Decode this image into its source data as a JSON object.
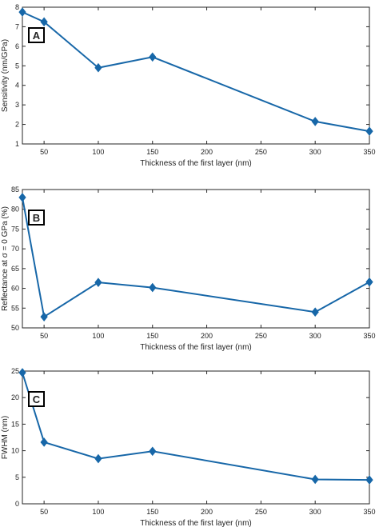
{
  "colors": {
    "series": "#1767a8",
    "axis": "#262626"
  },
  "chart_data": [
    {
      "type": "line",
      "panel_label": "A",
      "xlabel": "Thickness of the first layer (nm)",
      "ylabel": "Sensitivity (nm/GPa)",
      "xlim": [
        30,
        350
      ],
      "ylim": [
        1,
        8
      ],
      "xticks": [
        50,
        100,
        150,
        200,
        250,
        300,
        350
      ],
      "yticks": [
        1,
        2,
        3,
        4,
        5,
        6,
        7,
        8
      ],
      "xtick_labels": [
        "50",
        "100",
        "150",
        "200",
        "250",
        "300",
        "350"
      ],
      "ytick_labels": [
        "1",
        "2",
        "3",
        "4",
        "5",
        "6",
        "7",
        "8"
      ],
      "grid": false,
      "series": [
        {
          "x": [
            30,
            50,
            100,
            150,
            300,
            350
          ],
          "y": [
            7.75,
            7.25,
            4.9,
            5.45,
            2.15,
            1.65
          ]
        }
      ]
    },
    {
      "type": "line",
      "panel_label": "B",
      "xlabel": "Thickness of the first layer (nm)",
      "ylabel": "Reflectance at σ = 0 GPa (%)",
      "xlim": [
        30,
        350
      ],
      "ylim": [
        50,
        85
      ],
      "xticks": [
        50,
        100,
        150,
        200,
        250,
        300,
        350
      ],
      "yticks": [
        50,
        55,
        60,
        65,
        70,
        75,
        80,
        85
      ],
      "xtick_labels": [
        "50",
        "100",
        "150",
        "200",
        "250",
        "300",
        "350"
      ],
      "ytick_labels": [
        "50",
        "55",
        "60",
        "65",
        "70",
        "75",
        "80",
        "85"
      ],
      "grid": false,
      "series": [
        {
          "x": [
            30,
            50,
            100,
            150,
            300,
            350
          ],
          "y": [
            83,
            52.8,
            61.5,
            60.2,
            54,
            61.6
          ]
        }
      ]
    },
    {
      "type": "line",
      "panel_label": "C",
      "xlabel": "Thickness of the first layer (nm)",
      "ylabel": "FWHM (nm)",
      "xlim": [
        30,
        350
      ],
      "ylim": [
        0,
        25
      ],
      "xticks": [
        50,
        100,
        150,
        200,
        250,
        300,
        350
      ],
      "yticks": [
        0,
        5,
        10,
        15,
        20,
        25
      ],
      "xtick_labels": [
        "50",
        "100",
        "150",
        "200",
        "250",
        "300",
        "350"
      ],
      "ytick_labels": [
        "0",
        "5",
        "10",
        "15",
        "20",
        "25"
      ],
      "grid": false,
      "series": [
        {
          "x": [
            30,
            50,
            100,
            150,
            300,
            350
          ],
          "y": [
            24.7,
            11.6,
            8.5,
            9.9,
            4.6,
            4.5
          ]
        }
      ]
    }
  ]
}
